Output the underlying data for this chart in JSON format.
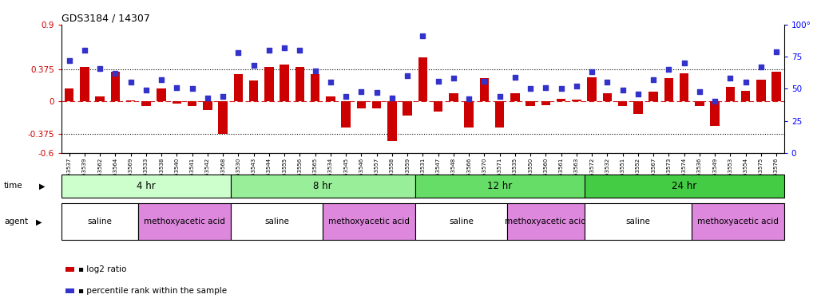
{
  "title": "GDS3184 / 14307",
  "samples": [
    "GSM253537",
    "GSM253539",
    "GSM253562",
    "GSM253564",
    "GSM253569",
    "GSM253533",
    "GSM253538",
    "GSM253540",
    "GSM253541",
    "GSM253542",
    "GSM253568",
    "GSM253530",
    "GSM253543",
    "GSM253544",
    "GSM253555",
    "GSM253556",
    "GSM253565",
    "GSM253534",
    "GSM253545",
    "GSM253546",
    "GSM253557",
    "GSM253558",
    "GSM253559",
    "GSM253531",
    "GSM253547",
    "GSM253548",
    "GSM253566",
    "GSM253570",
    "GSM253571",
    "GSM253535",
    "GSM253550",
    "GSM253560",
    "GSM253561",
    "GSM253563",
    "GSM253572",
    "GSM253532",
    "GSM253551",
    "GSM253552",
    "GSM253567",
    "GSM253573",
    "GSM253574",
    "GSM253536",
    "GSM253549",
    "GSM253553",
    "GSM253554",
    "GSM253575",
    "GSM253576"
  ],
  "log2_ratio": [
    0.15,
    0.4,
    0.06,
    0.35,
    0.01,
    -0.05,
    0.15,
    -0.02,
    -0.05,
    -0.1,
    -0.38,
    0.32,
    0.25,
    0.4,
    0.43,
    0.4,
    0.32,
    0.06,
    -0.3,
    -0.08,
    -0.08,
    -0.46,
    -0.16,
    0.52,
    -0.12,
    0.1,
    -0.3,
    0.27,
    -0.3,
    0.1,
    -0.05,
    -0.04,
    0.03,
    0.02,
    0.28,
    0.1,
    -0.05,
    -0.14,
    0.12,
    0.27,
    0.33,
    -0.05,
    -0.28,
    0.17,
    0.13,
    0.26,
    0.35
  ],
  "percentile": [
    72,
    80,
    66,
    62,
    55,
    49,
    57,
    51,
    50,
    43,
    44,
    78,
    68,
    80,
    82,
    80,
    64,
    55,
    44,
    48,
    47,
    43,
    60,
    91,
    56,
    58,
    42,
    56,
    44,
    59,
    50,
    51,
    50,
    52,
    63,
    55,
    49,
    46,
    57,
    65,
    70,
    48,
    40,
    58,
    55,
    67,
    79
  ],
  "ylim_left": [
    -0.6,
    0.9
  ],
  "ylim_right": [
    0,
    100
  ],
  "yticks_left": [
    -0.6,
    -0.375,
    0.0,
    0.375,
    0.9
  ],
  "yticks_right": [
    0,
    25,
    50,
    75,
    100
  ],
  "hlines": [
    0.375,
    -0.375
  ],
  "bar_color": "#cc0000",
  "dot_color": "#3333cc",
  "zero_line_color": "#cc0000",
  "bg_color": "#ffffff",
  "time_groups": [
    {
      "label": "4 hr",
      "start": 0,
      "end": 11,
      "color": "#ccffcc"
    },
    {
      "label": "8 hr",
      "start": 11,
      "end": 23,
      "color": "#99ee99"
    },
    {
      "label": "12 hr",
      "start": 23,
      "end": 34,
      "color": "#66dd66"
    },
    {
      "label": "24 hr",
      "start": 34,
      "end": 47,
      "color": "#44cc44"
    }
  ],
  "agent_groups": [
    {
      "label": "saline",
      "start": 0,
      "end": 5,
      "color": "#ffffff"
    },
    {
      "label": "methoxyacetic acid",
      "start": 5,
      "end": 11,
      "color": "#dd88dd"
    },
    {
      "label": "saline",
      "start": 11,
      "end": 17,
      "color": "#ffffff"
    },
    {
      "label": "methoxyacetic acid",
      "start": 17,
      "end": 23,
      "color": "#dd88dd"
    },
    {
      "label": "saline",
      "start": 23,
      "end": 29,
      "color": "#ffffff"
    },
    {
      "label": "methoxyacetic acid",
      "start": 29,
      "end": 34,
      "color": "#dd88dd"
    },
    {
      "label": "saline",
      "start": 34,
      "end": 41,
      "color": "#ffffff"
    },
    {
      "label": "methoxyacetic acid",
      "start": 41,
      "end": 47,
      "color": "#dd88dd"
    }
  ]
}
